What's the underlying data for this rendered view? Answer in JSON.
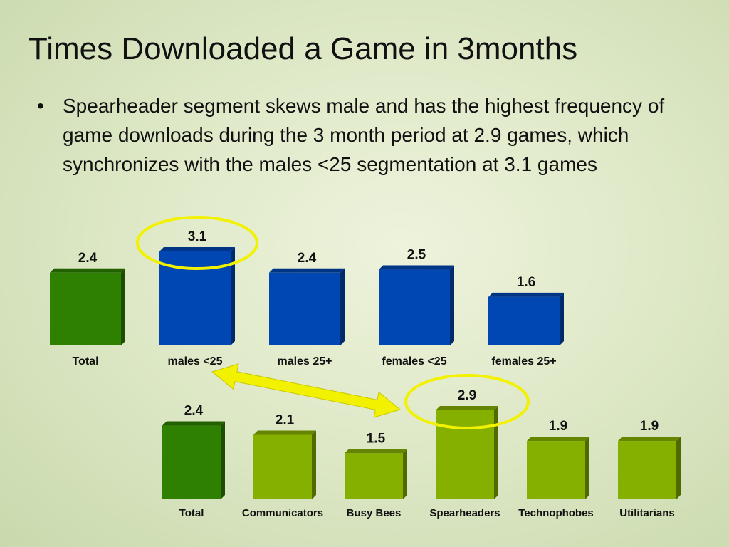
{
  "slide": {
    "title": "Times Downloaded a Game in 3months",
    "bullet": "Spearheader segment skews male and has the highest frequency of game downloads during the 3 month period at 2.9 games, which synchronizes with the males <25 segmentation at 3.1 games"
  },
  "colors": {
    "total_green": "#2e8000",
    "blue": "#0047b3",
    "light_green": "#86b000",
    "highlight_yellow": "#f2f200"
  },
  "chart_data": [
    {
      "type": "bar",
      "categories": [
        "Total",
        "males <25",
        "males 25+",
        "females <25",
        "females 25+"
      ],
      "values": [
        2.4,
        3.1,
        2.4,
        2.5,
        1.6
      ],
      "value_labels": [
        "2.4",
        "3.1",
        "2.4",
        "2.5",
        "1.6"
      ],
      "bar_colors": [
        "#2e8000",
        "#0047b3",
        "#0047b3",
        "#0047b3",
        "#0047b3"
      ],
      "ylim": [
        0,
        3.1
      ],
      "grid": false,
      "highlighted": [
        "males <25"
      ]
    },
    {
      "type": "bar",
      "categories": [
        "Total",
        "Communicators",
        "Busy Bees",
        "Spearheaders",
        "Technophobes",
        "Utilitarians"
      ],
      "values": [
        2.4,
        2.1,
        1.5,
        2.9,
        1.9,
        1.9
      ],
      "value_labels": [
        "2.4",
        "2.1",
        "1.5",
        "2.9",
        "1.9",
        "1.9"
      ],
      "bar_colors": [
        "#2e8000",
        "#86b000",
        "#86b000",
        "#86b000",
        "#86b000",
        "#86b000"
      ],
      "ylim": [
        0,
        2.9
      ],
      "grid": false,
      "highlighted": [
        "Spearheaders"
      ]
    }
  ]
}
